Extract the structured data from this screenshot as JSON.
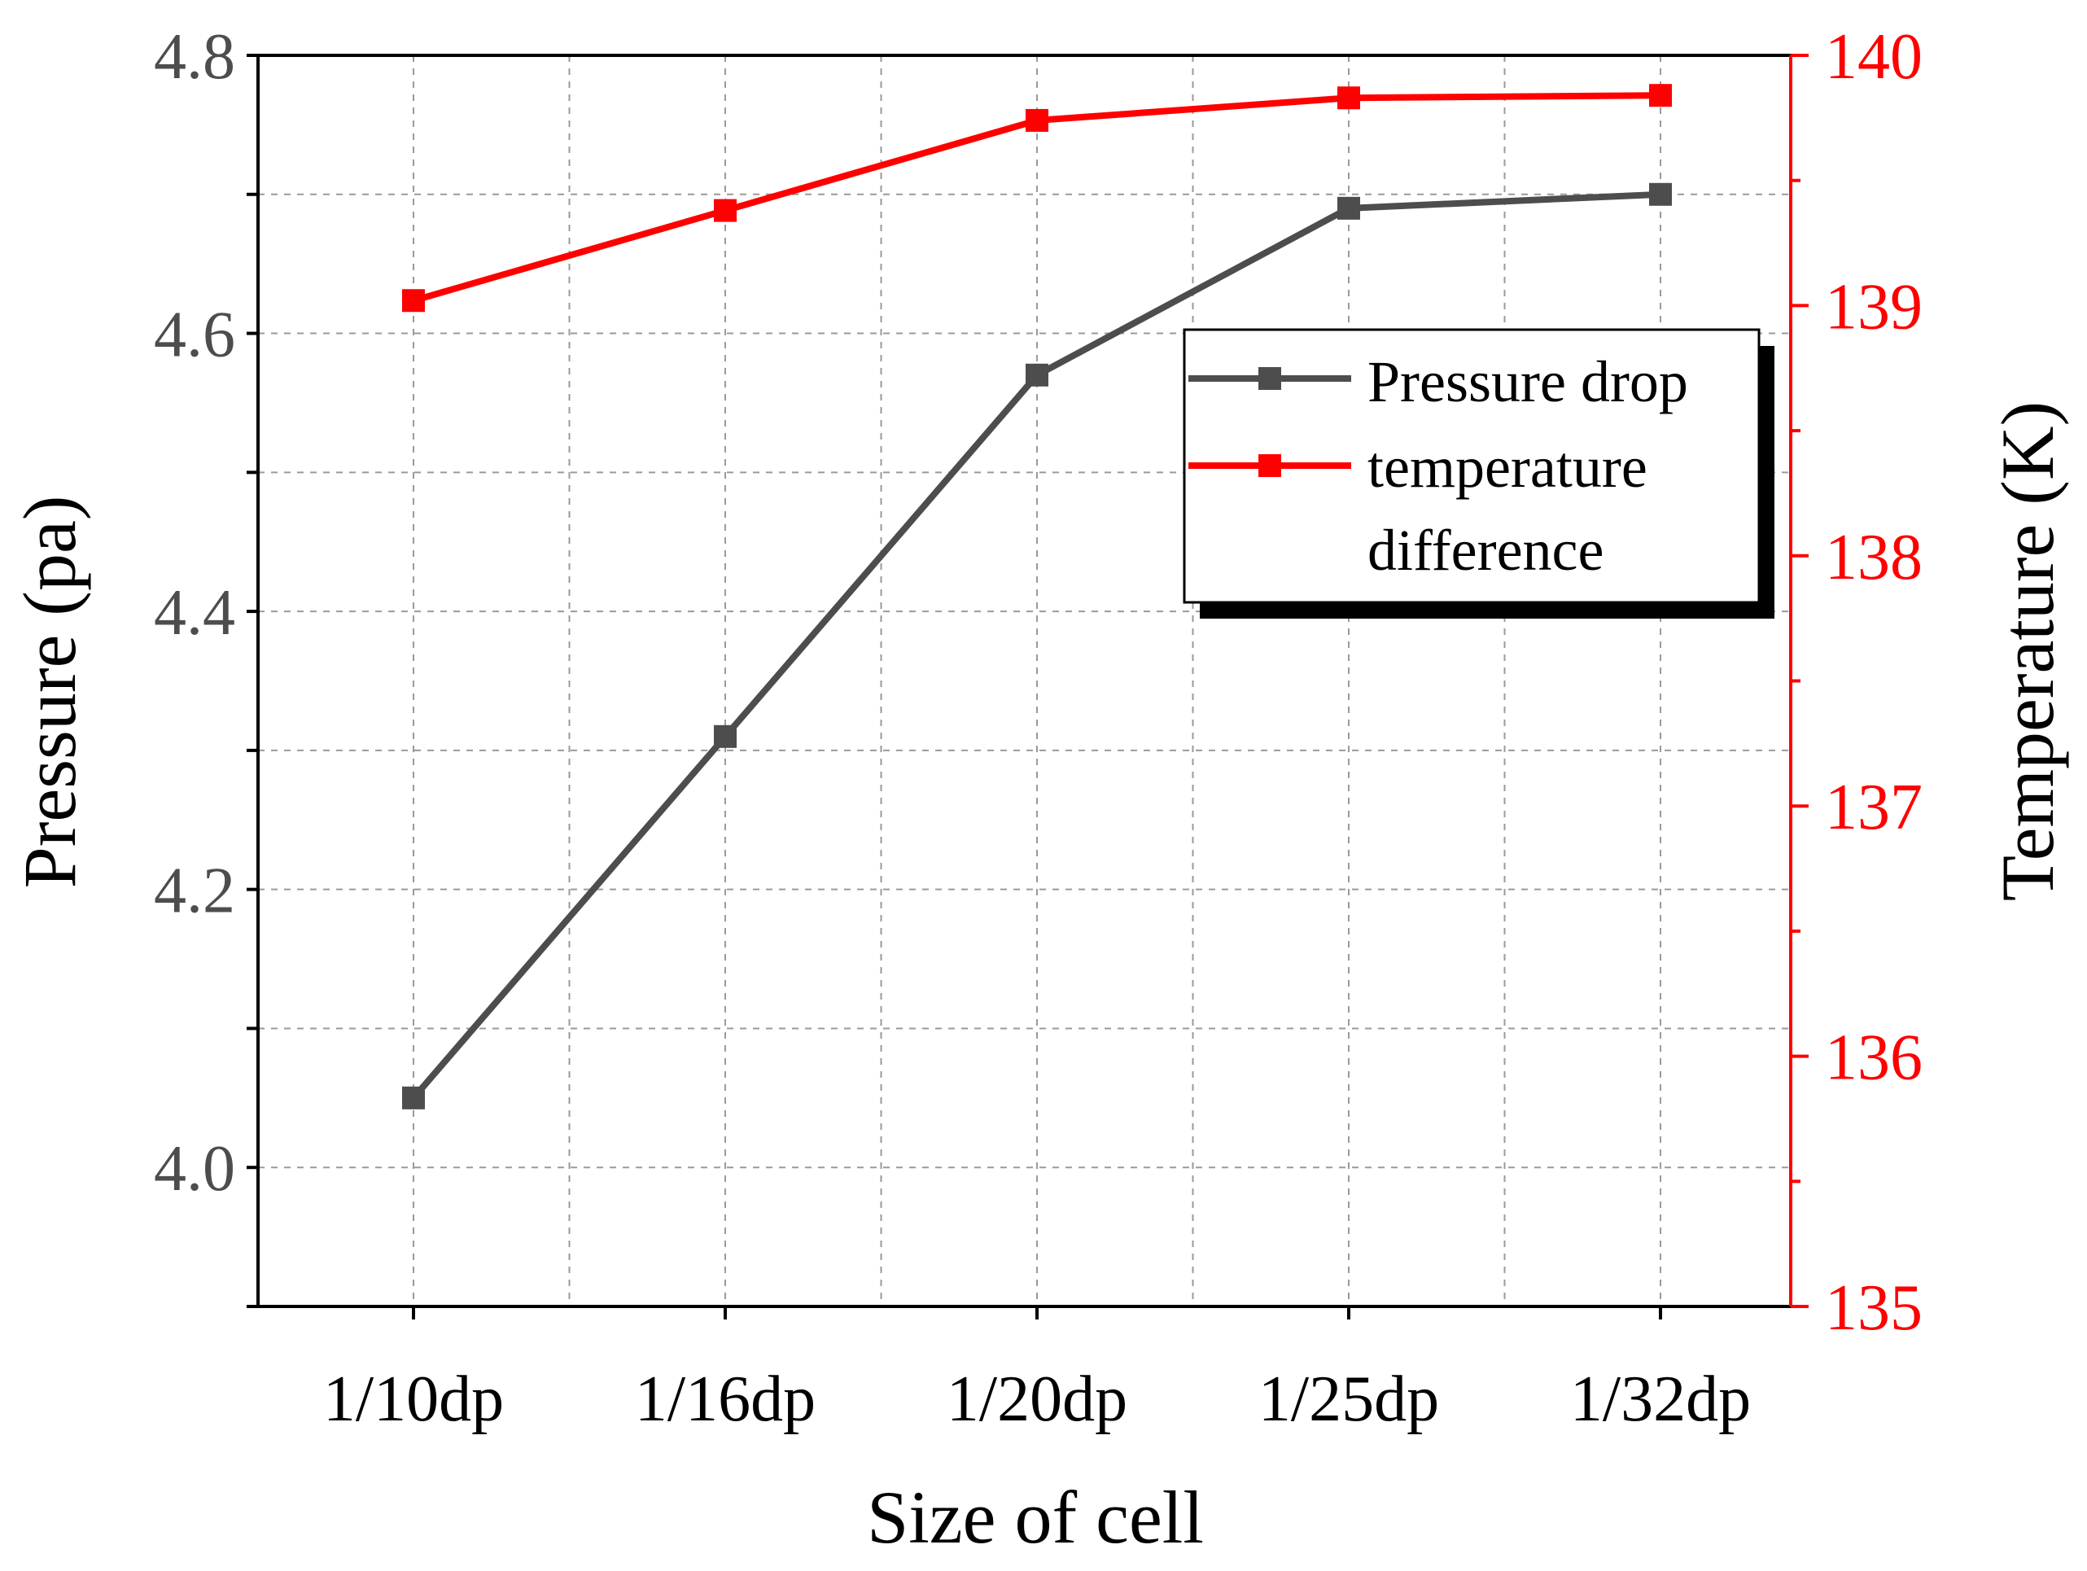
{
  "chart_data": {
    "type": "line",
    "categories": [
      "1/10dp",
      "1/16dp",
      "1/20dp",
      "1/25dp",
      "1/32dp"
    ],
    "xlabel": "Size of cell",
    "ylabel_left": "Pressure (pa)",
    "ylabel_right": "Temperature (K)",
    "ylim_left": [
      3.9,
      4.8
    ],
    "ylim_right": [
      135,
      140
    ],
    "yticks_left": [
      "4.0",
      "4.2",
      "4.4",
      "4.6",
      "4.8"
    ],
    "yticks_right": [
      "135",
      "136",
      "137",
      "138",
      "139",
      "140"
    ],
    "grid": true,
    "legend_position": "top-right",
    "series": [
      {
        "name": "Pressure drop",
        "axis": "left",
        "color": "#4d4d4d",
        "marker": "square",
        "values": [
          4.05,
          4.31,
          4.57,
          4.69,
          4.7
        ]
      },
      {
        "name": "temperature difference",
        "axis": "right",
        "color": "#ff0000",
        "marker": "square",
        "values": [
          139.02,
          139.38,
          139.74,
          139.83,
          139.84
        ]
      }
    ],
    "legend_lines": [
      "Pressure drop",
      "temperature",
      "difference"
    ]
  },
  "colors": {
    "axis_left": "#000000",
    "axis_right": "#ff0000",
    "tick_label_left": "#4d4d4d",
    "grid": "#9a9a9a"
  }
}
